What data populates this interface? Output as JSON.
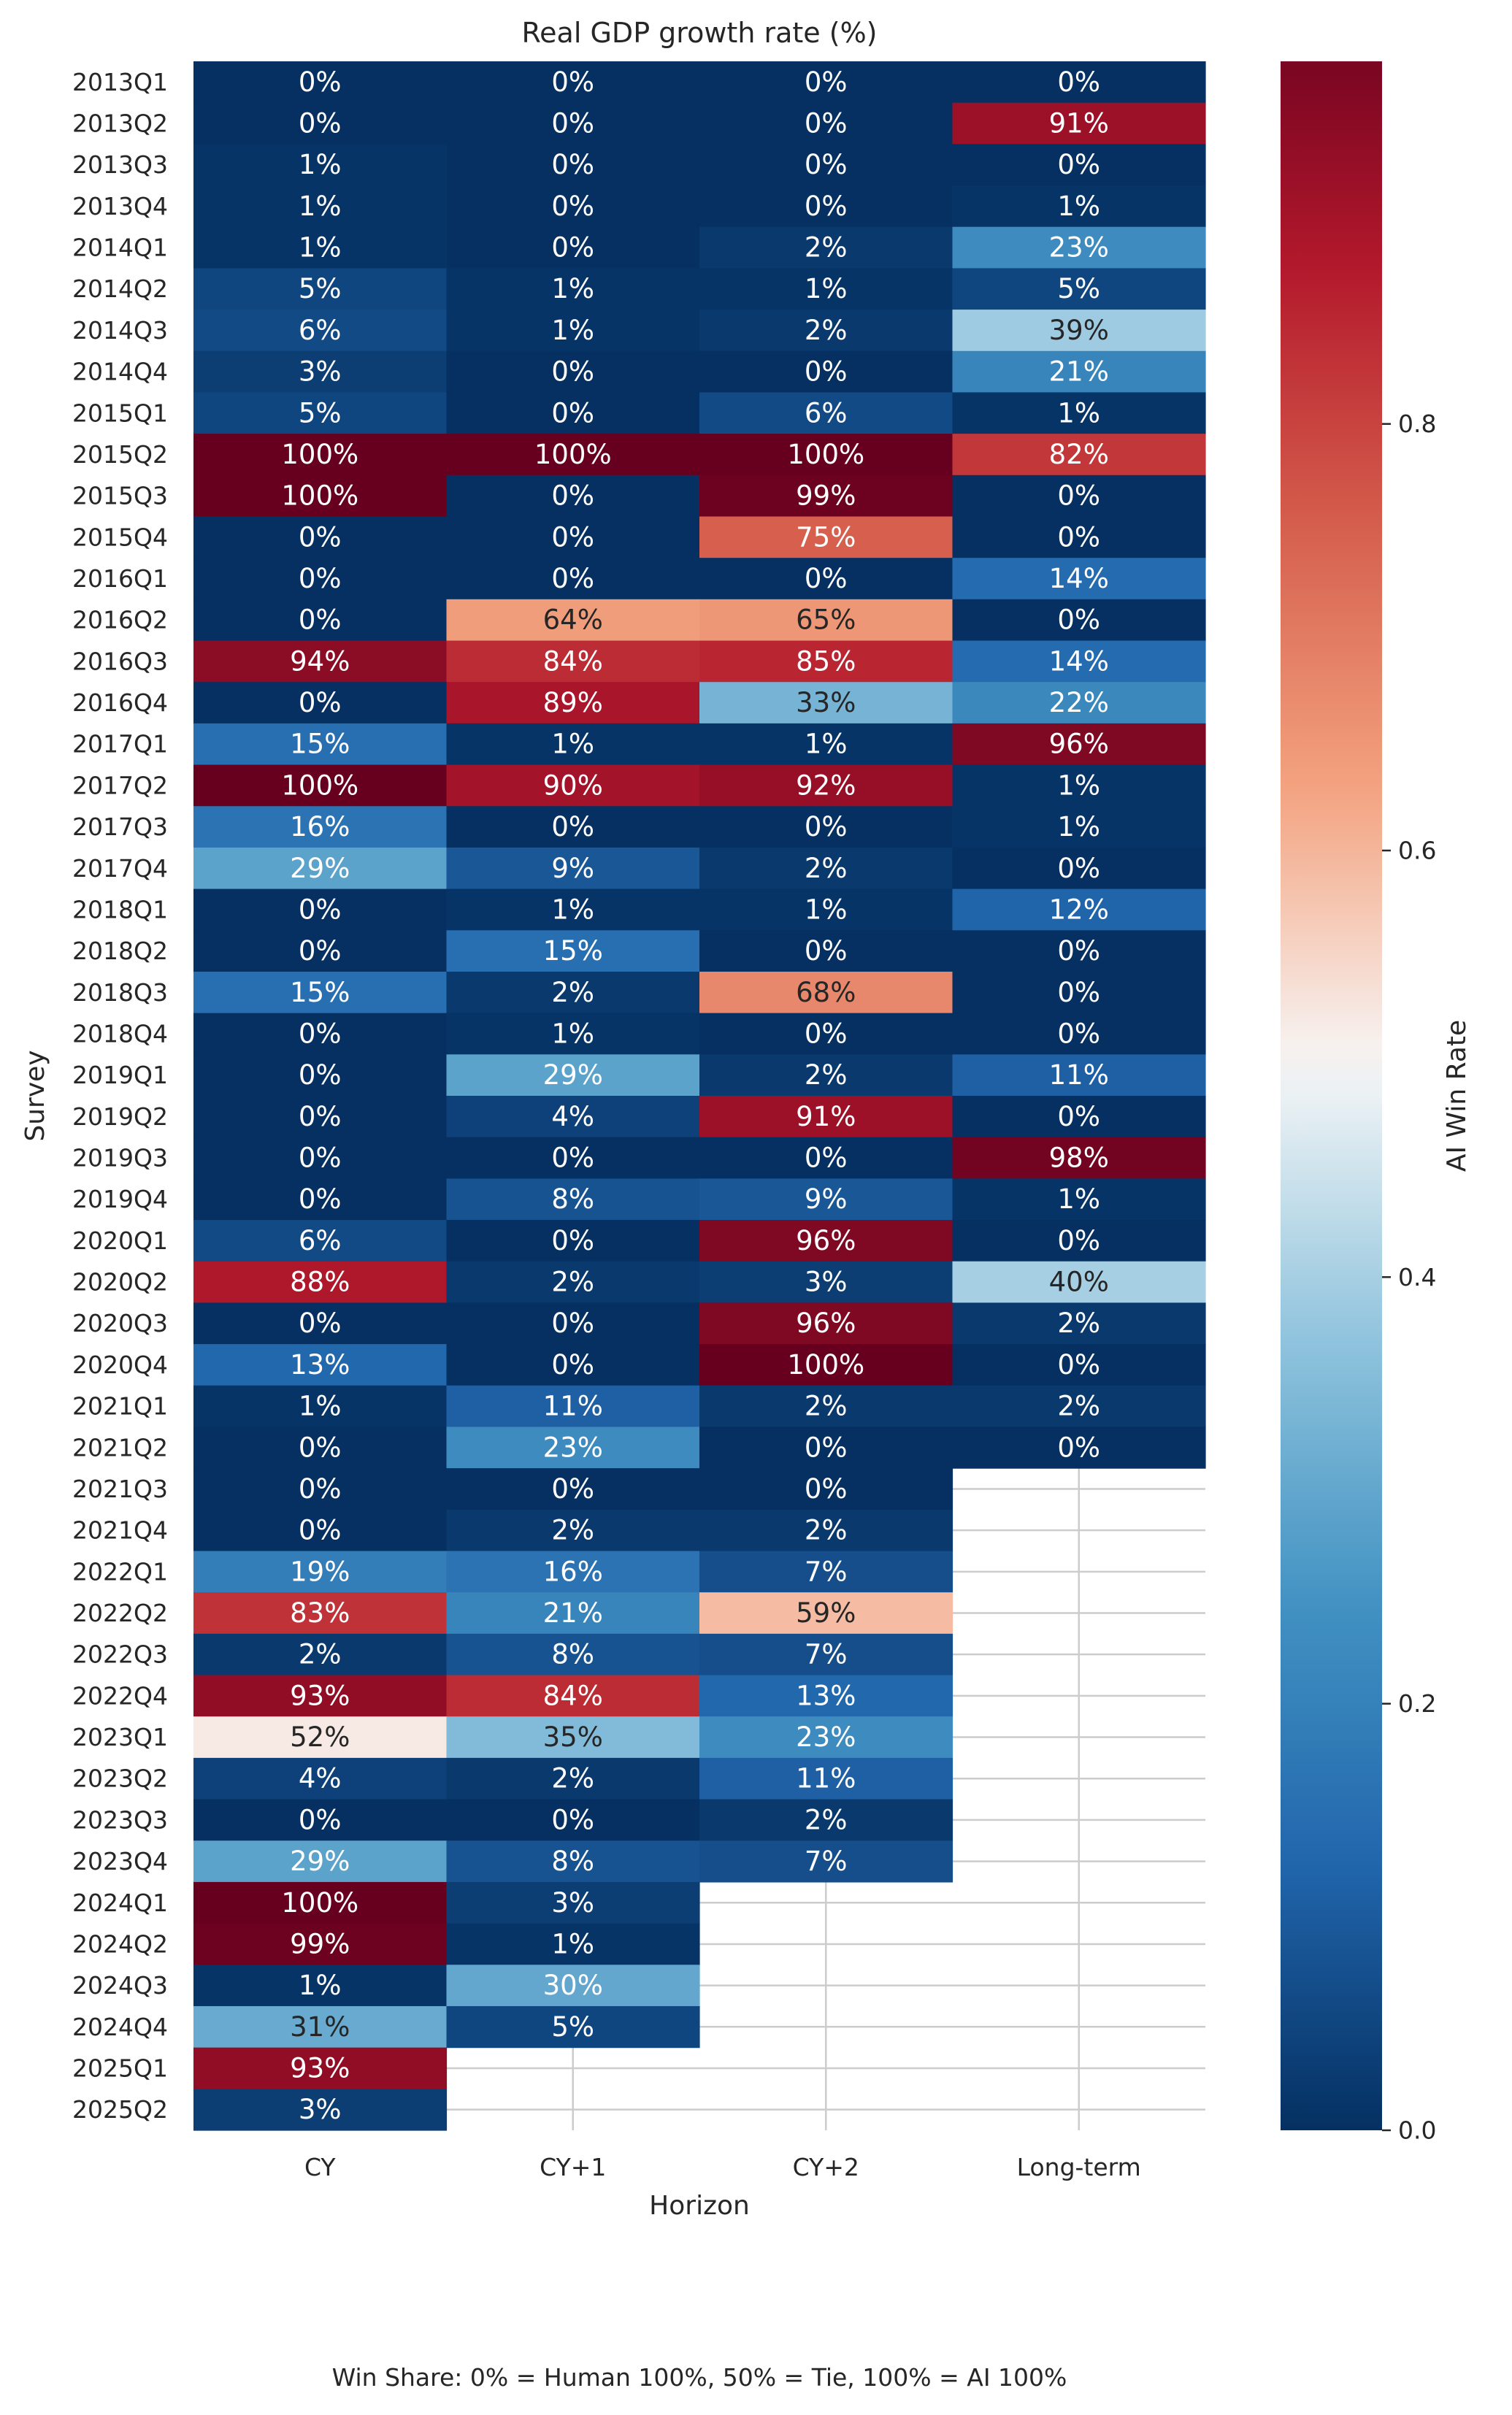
{
  "chart_data": {
    "type": "heatmap",
    "title": "Real GDP growth rate (%)",
    "xlabel": "Horizon",
    "ylabel": "Survey",
    "columns": [
      "CY",
      "CY+1",
      "CY+2",
      "Long-term"
    ],
    "rows": [
      "2013Q1",
      "2013Q2",
      "2013Q3",
      "2013Q4",
      "2014Q1",
      "2014Q2",
      "2014Q3",
      "2014Q4",
      "2015Q1",
      "2015Q2",
      "2015Q3",
      "2015Q4",
      "2016Q1",
      "2016Q2",
      "2016Q3",
      "2016Q4",
      "2017Q1",
      "2017Q2",
      "2017Q3",
      "2017Q4",
      "2018Q1",
      "2018Q2",
      "2018Q3",
      "2018Q4",
      "2019Q1",
      "2019Q2",
      "2019Q3",
      "2019Q4",
      "2020Q1",
      "2020Q2",
      "2020Q3",
      "2020Q4",
      "2021Q1",
      "2021Q2",
      "2021Q3",
      "2021Q4",
      "2022Q1",
      "2022Q2",
      "2022Q3",
      "2022Q4",
      "2023Q1",
      "2023Q2",
      "2023Q3",
      "2023Q4",
      "2024Q1",
      "2024Q2",
      "2024Q3",
      "2024Q4",
      "2025Q1",
      "2025Q2"
    ],
    "values": [
      [
        0,
        0,
        0,
        0
      ],
      [
        0,
        0,
        0,
        91
      ],
      [
        1,
        0,
        0,
        0
      ],
      [
        1,
        0,
        0,
        1
      ],
      [
        1,
        0,
        2,
        23
      ],
      [
        5,
        1,
        1,
        5
      ],
      [
        6,
        1,
        2,
        39
      ],
      [
        3,
        0,
        0,
        21
      ],
      [
        5,
        0,
        6,
        1
      ],
      [
        100,
        100,
        100,
        82
      ],
      [
        100,
        0,
        99,
        0
      ],
      [
        0,
        0,
        75,
        0
      ],
      [
        0,
        0,
        0,
        14
      ],
      [
        0,
        64,
        65,
        0
      ],
      [
        94,
        84,
        85,
        14
      ],
      [
        0,
        89,
        33,
        22
      ],
      [
        15,
        1,
        1,
        96
      ],
      [
        100,
        90,
        92,
        1
      ],
      [
        16,
        0,
        0,
        1
      ],
      [
        29,
        9,
        2,
        0
      ],
      [
        0,
        1,
        1,
        12
      ],
      [
        0,
        15,
        0,
        0
      ],
      [
        15,
        2,
        68,
        0
      ],
      [
        0,
        1,
        0,
        0
      ],
      [
        0,
        29,
        2,
        11
      ],
      [
        0,
        4,
        91,
        0
      ],
      [
        0,
        0,
        0,
        98
      ],
      [
        0,
        8,
        9,
        1
      ],
      [
        6,
        0,
        96,
        0
      ],
      [
        88,
        2,
        3,
        40
      ],
      [
        0,
        0,
        96,
        2
      ],
      [
        13,
        0,
        100,
        0
      ],
      [
        1,
        11,
        2,
        2
      ],
      [
        0,
        23,
        0,
        0
      ],
      [
        0,
        0,
        0,
        null
      ],
      [
        0,
        2,
        2,
        null
      ],
      [
        19,
        16,
        7,
        null
      ],
      [
        83,
        21,
        59,
        null
      ],
      [
        2,
        8,
        7,
        null
      ],
      [
        93,
        84,
        13,
        null
      ],
      [
        52,
        35,
        23,
        null
      ],
      [
        4,
        2,
        11,
        null
      ],
      [
        0,
        0,
        2,
        null
      ],
      [
        29,
        8,
        7,
        null
      ],
      [
        100,
        3,
        null,
        null
      ],
      [
        99,
        1,
        null,
        null
      ],
      [
        1,
        30,
        null,
        null
      ],
      [
        31,
        5,
        null,
        null
      ],
      [
        93,
        null,
        null,
        null
      ],
      [
        3,
        null,
        null,
        null
      ]
    ],
    "value_unit": "%",
    "colorbar": {
      "label": "AI Win Rate",
      "range": [
        0,
        1
      ],
      "ticks": [
        0.0,
        0.2,
        0.4,
        0.6,
        0.8
      ],
      "tick_labels": [
        "0.0",
        "0.2",
        "0.4",
        "0.6",
        "0.8"
      ],
      "colormap": "RdBu_r"
    },
    "caption": "Win Share: 0% = Human 100%, 50% = Tie, 100% = AI 100%"
  }
}
